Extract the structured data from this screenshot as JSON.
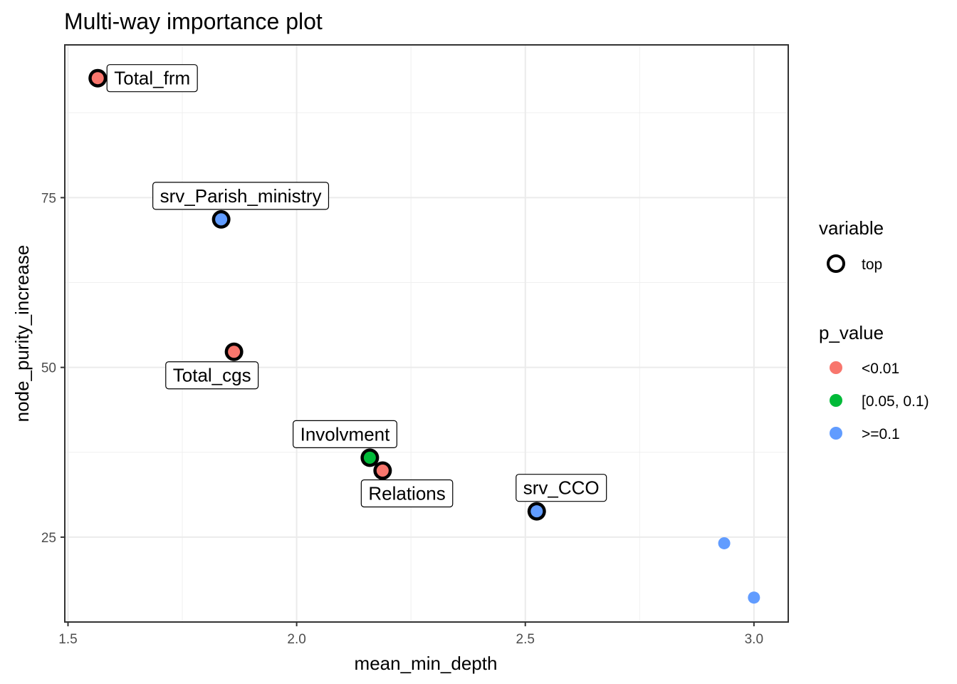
{
  "chart_data": {
    "type": "scatter",
    "title": "Multi-way importance plot",
    "xlabel": "mean_min_depth",
    "ylabel": "node_purity_increase",
    "xlim": [
      1.493,
      3.075
    ],
    "ylim": [
      12.5,
      97.5
    ],
    "x_ticks": [
      1.5,
      2.0,
      2.5,
      3.0
    ],
    "x_tick_labels": [
      "1.5",
      "2.0",
      "2.5",
      "3.0"
    ],
    "x_minor_ticks": [
      1.75,
      2.25,
      2.75
    ],
    "y_ticks": [
      25,
      50,
      75
    ],
    "y_tick_labels": [
      "25",
      "50",
      "75"
    ],
    "y_minor_ticks": [
      37.5,
      62.5,
      87.5
    ],
    "grid": true,
    "points": [
      {
        "label": "Total_frm",
        "x": 1.565,
        "y": 92.6,
        "p_value": "<0.01",
        "top": true,
        "label_pos": "right"
      },
      {
        "label": "srv_Parish_ministry",
        "x": 1.835,
        "y": 71.8,
        "p_value": ">=0.1",
        "top": true,
        "label_pos": "above"
      },
      {
        "label": "Total_cgs",
        "x": 1.863,
        "y": 52.3,
        "p_value": "<0.01",
        "top": true,
        "label_pos": "below-left"
      },
      {
        "label": "Involvment",
        "x": 2.16,
        "y": 36.7,
        "p_value": "[0.05, 0.1)",
        "top": true,
        "label_pos": "above-left"
      },
      {
        "label": "Relations",
        "x": 2.188,
        "y": 34.8,
        "p_value": "<0.01",
        "top": true,
        "label_pos": "below-right"
      },
      {
        "label": "srv_CCO",
        "x": 2.525,
        "y": 28.8,
        "p_value": ">=0.1",
        "top": true,
        "label_pos": "above"
      },
      {
        "label": "",
        "x": 2.935,
        "y": 24.1,
        "p_value": ">=0.1",
        "top": false
      },
      {
        "label": "",
        "x": 3.0,
        "y": 16.1,
        "p_value": ">=0.1",
        "top": false
      }
    ],
    "legend": {
      "placement": "right",
      "variable": {
        "title": "variable",
        "items": [
          {
            "label": "top"
          }
        ]
      },
      "p_value": {
        "title": "p_value",
        "items": [
          {
            "label": "<0.01",
            "color": "#F8766D"
          },
          {
            "label": "[0.05, 0.1)",
            "color": "#00BA38"
          },
          {
            "label": ">=0.1",
            "color": "#619CFF"
          }
        ]
      }
    }
  }
}
